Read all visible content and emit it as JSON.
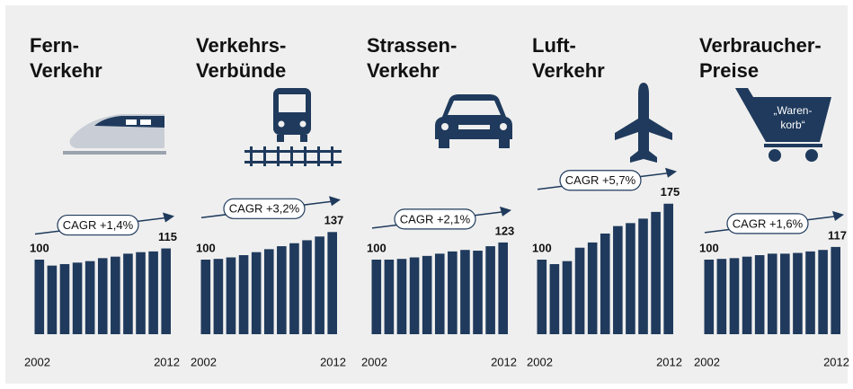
{
  "chart_data": [
    {
      "type": "bar",
      "title_lines": [
        "Fern-",
        "Verkehr"
      ],
      "annotation": "CAGR +1,4%",
      "color": "#1f3a5c",
      "categories": [
        "2002",
        null,
        null,
        null,
        null,
        null,
        null,
        null,
        null,
        null,
        "2012"
      ],
      "values": [
        100,
        92,
        94,
        96,
        98,
        102,
        104,
        108,
        110,
        111,
        115
      ]
    },
    {
      "type": "bar",
      "title_lines": [
        "Verkehrs-",
        "Verbünde"
      ],
      "annotation": "CAGR +3,2%",
      "color": "#1f3a5c",
      "categories": [
        "2002",
        null,
        null,
        null,
        null,
        null,
        null,
        null,
        null,
        null,
        "2012"
      ],
      "values": [
        100,
        101,
        103,
        106,
        110,
        114,
        118,
        122,
        126,
        131,
        137
      ]
    },
    {
      "type": "bar",
      "title_lines": [
        "Strassen-",
        "Verkehr"
      ],
      "annotation": "CAGR +2,1%",
      "color": "#1f3a5c",
      "categories": [
        "2002",
        null,
        null,
        null,
        null,
        null,
        null,
        null,
        null,
        null,
        "2012"
      ],
      "values": [
        100,
        100,
        101,
        103,
        105,
        108,
        111,
        113,
        112,
        118,
        123
      ]
    },
    {
      "type": "bar",
      "title_lines": [
        "Luft-",
        "Verkehr"
      ],
      "annotation": "CAGR +5,7%",
      "color": "#1f3a5c",
      "categories": [
        "2002",
        null,
        null,
        null,
        null,
        null,
        null,
        null,
        null,
        null,
        "2012"
      ],
      "values": [
        100,
        94,
        98,
        116,
        123,
        135,
        145,
        149,
        155,
        164,
        175
      ]
    },
    {
      "type": "bar",
      "title_lines": [
        "Verbraucher-",
        "Preise"
      ],
      "annotation": "CAGR +1,6%",
      "color": "#1f3a5c",
      "icon_label": [
        "„Waren-",
        "korb“"
      ],
      "categories": [
        "2002",
        null,
        null,
        null,
        null,
        null,
        null,
        null,
        null,
        null,
        "2012"
      ],
      "values": [
        100,
        101,
        102,
        104,
        106,
        108,
        108,
        109,
        111,
        113,
        117
      ]
    }
  ]
}
